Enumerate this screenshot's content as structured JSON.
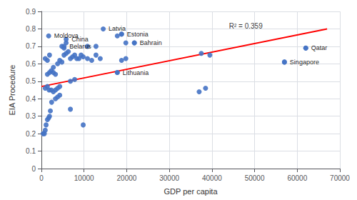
{
  "chart_data": {
    "type": "scatter",
    "xlabel": "GDP per capita",
    "ylabel": "EIA Procedure",
    "xlim": [
      0,
      70000
    ],
    "ylim": [
      0,
      0.9
    ],
    "xticks": [
      0,
      10000,
      20000,
      30000,
      40000,
      50000,
      60000,
      70000
    ],
    "yticks": [
      0,
      0.1,
      0.2,
      0.3,
      0.4,
      0.5,
      0.6,
      0.7,
      0.8,
      0.9
    ],
    "grid": true,
    "color": "#4472C4",
    "points": [
      [
        400,
        0.2
      ],
      [
        700,
        0.2
      ],
      [
        900,
        0.22
      ],
      [
        1100,
        0.25
      ],
      [
        1400,
        0.28
      ],
      [
        1700,
        0.29
      ],
      [
        1900,
        0.3
      ],
      [
        2100,
        0.33
      ],
      [
        2400,
        0.38
      ],
      [
        900,
        0.46
      ],
      [
        1400,
        0.47
      ],
      [
        1800,
        0.45
      ],
      [
        2300,
        0.45
      ],
      [
        2800,
        0.44
      ],
      [
        3300,
        0.45
      ],
      [
        3800,
        0.46
      ],
      [
        4300,
        0.47
      ],
      [
        2800,
        0.55
      ],
      [
        3300,
        0.54
      ],
      [
        3800,
        0.6
      ],
      [
        4300,
        0.62
      ],
      [
        4800,
        0.61
      ],
      [
        5300,
        0.65
      ],
      [
        5800,
        0.66
      ],
      [
        6300,
        0.67
      ],
      [
        4800,
        0.7
      ],
      [
        5300,
        0.69
      ],
      [
        5800,
        0.72
      ],
      [
        1400,
        0.54
      ],
      [
        1900,
        0.55
      ],
      [
        2300,
        0.56
      ],
      [
        2800,
        0.58
      ],
      [
        3300,
        0.4
      ],
      [
        3800,
        0.41
      ],
      [
        4300,
        0.42
      ],
      [
        900,
        0.63
      ],
      [
        1400,
        0.62
      ],
      [
        1900,
        0.65
      ],
      [
        6800,
        0.63
      ],
      [
        7300,
        0.64
      ],
      [
        7800,
        0.65
      ],
      [
        8300,
        0.63
      ],
      [
        8800,
        0.63
      ],
      [
        9300,
        0.65
      ],
      [
        9800,
        0.64
      ],
      [
        6800,
        0.5
      ],
      [
        7800,
        0.51
      ],
      [
        9800,
        0.25
      ],
      [
        6800,
        0.34
      ],
      [
        10800,
        0.63
      ],
      [
        11800,
        0.62
      ],
      [
        12800,
        0.65
      ],
      [
        13800,
        0.63
      ],
      [
        10800,
        0.7
      ],
      [
        12800,
        0.7
      ],
      [
        17800,
        0.76
      ],
      [
        18800,
        0.77
      ],
      [
        19800,
        0.72
      ],
      [
        21800,
        0.72
      ],
      [
        17800,
        0.55
      ],
      [
        18800,
        0.62
      ],
      [
        19800,
        0.63
      ],
      [
        37000,
        0.44
      ],
      [
        38500,
        0.46
      ],
      [
        37500,
        0.66
      ],
      [
        39500,
        0.65
      ],
      [
        57000,
        0.61
      ],
      [
        62000,
        0.69
      ]
    ],
    "labeled_points": [
      {
        "x": 1700,
        "y": 0.76,
        "label": "Moldova"
      },
      {
        "x": 5800,
        "y": 0.74,
        "label": "China"
      },
      {
        "x": 5300,
        "y": 0.7,
        "label": "Belarus"
      },
      {
        "x": 14500,
        "y": 0.8,
        "label": "Latvia"
      },
      {
        "x": 18800,
        "y": 0.77,
        "label": "Estonia"
      },
      {
        "x": 21800,
        "y": 0.72,
        "label": "Bahrain"
      },
      {
        "x": 17800,
        "y": 0.55,
        "label": "Lithuania"
      },
      {
        "x": 57000,
        "y": 0.61,
        "label": "Singapore"
      },
      {
        "x": 62000,
        "y": 0.69,
        "label": "Qatar"
      }
    ],
    "trendline": {
      "x": [
        0,
        67000
      ],
      "y": [
        0.47,
        0.8
      ],
      "color": "red"
    },
    "annotations": [
      {
        "text": "R² = 0.359",
        "x": 44000,
        "y": 0.795
      }
    ]
  }
}
